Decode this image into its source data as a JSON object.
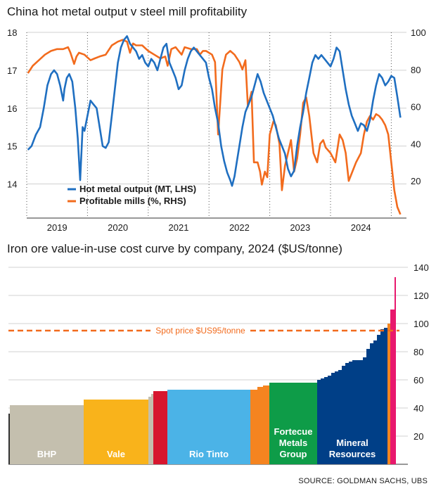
{
  "colors": {
    "hot_metal": "#1f6fc1",
    "profitable": "#f26b1d",
    "spot_line": "#f26b1d",
    "grid": "#d0d0d0",
    "axis": "#333333"
  },
  "chart_data": [
    {
      "type": "line",
      "title": "China hot metal output v steel mill profitability",
      "x_ticks": [
        "2019",
        "2020",
        "2021",
        "2022",
        "2023",
        "2024"
      ],
      "x_range": [
        2018.5,
        2024.75
      ],
      "y_left": {
        "range": [
          13.1,
          18
        ],
        "ticks": [
          14,
          15,
          16,
          17,
          18
        ],
        "label": ""
      },
      "y_right": {
        "range": [
          0,
          100
        ],
        "ticks": [
          20,
          40,
          60,
          80,
          100
        ],
        "label": ""
      },
      "legend_position": "bottom-left",
      "series": [
        {
          "name": "Hot metal output (MT, LHS)",
          "axis": "left",
          "color": "#1f6fc1",
          "points": [
            [
              2018.52,
              14.9
            ],
            [
              2018.58,
              15.0
            ],
            [
              2018.65,
              15.3
            ],
            [
              2018.72,
              15.5
            ],
            [
              2018.78,
              16.0
            ],
            [
              2018.84,
              16.6
            ],
            [
              2018.9,
              16.9
            ],
            [
              2018.95,
              17.0
            ],
            [
              2019.0,
              16.9
            ],
            [
              2019.05,
              16.6
            ],
            [
              2019.1,
              16.2
            ],
            [
              2019.12,
              16.5
            ],
            [
              2019.16,
              16.8
            ],
            [
              2019.2,
              16.9
            ],
            [
              2019.25,
              16.7
            ],
            [
              2019.3,
              16.0
            ],
            [
              2019.34,
              15.2
            ],
            [
              2019.38,
              14.1
            ],
            [
              2019.42,
              15.5
            ],
            [
              2019.45,
              15.4
            ],
            [
              2019.5,
              15.8
            ],
            [
              2019.55,
              16.2
            ],
            [
              2019.6,
              16.1
            ],
            [
              2019.65,
              16.0
            ],
            [
              2019.7,
              15.5
            ],
            [
              2019.75,
              15.0
            ],
            [
              2019.8,
              14.95
            ],
            [
              2019.85,
              15.1
            ],
            [
              2019.9,
              15.8
            ],
            [
              2019.95,
              16.5
            ],
            [
              2020.0,
              17.2
            ],
            [
              2020.05,
              17.6
            ],
            [
              2020.1,
              17.8
            ],
            [
              2020.15,
              17.9
            ],
            [
              2020.2,
              17.7
            ],
            [
              2020.25,
              17.6
            ],
            [
              2020.3,
              17.5
            ],
            [
              2020.35,
              17.3
            ],
            [
              2020.4,
              17.4
            ],
            [
              2020.45,
              17.2
            ],
            [
              2020.5,
              17.1
            ],
            [
              2020.55,
              17.3
            ],
            [
              2020.6,
              17.2
            ],
            [
              2020.65,
              17.0
            ],
            [
              2020.7,
              17.3
            ],
            [
              2020.75,
              17.6
            ],
            [
              2020.8,
              17.7
            ],
            [
              2020.85,
              17.2
            ],
            [
              2020.9,
              17.0
            ],
            [
              2020.95,
              16.8
            ],
            [
              2021.0,
              16.5
            ],
            [
              2021.05,
              16.6
            ],
            [
              2021.1,
              17.0
            ],
            [
              2021.15,
              17.3
            ],
            [
              2021.2,
              17.5
            ],
            [
              2021.25,
              17.6
            ],
            [
              2021.3,
              17.5
            ],
            [
              2021.35,
              17.4
            ],
            [
              2021.4,
              17.3
            ],
            [
              2021.45,
              17.2
            ],
            [
              2021.5,
              16.8
            ],
            [
              2021.55,
              16.5
            ],
            [
              2021.6,
              16.0
            ],
            [
              2021.65,
              15.6
            ],
            [
              2021.7,
              15.0
            ],
            [
              2021.75,
              14.6
            ],
            [
              2021.8,
              14.3
            ],
            [
              2021.85,
              14.1
            ],
            [
              2021.88,
              13.95
            ],
            [
              2021.92,
              14.2
            ],
            [
              2021.96,
              14.6
            ],
            [
              2022.0,
              15.0
            ],
            [
              2022.05,
              15.5
            ],
            [
              2022.1,
              15.9
            ],
            [
              2022.15,
              16.1
            ],
            [
              2022.2,
              16.3
            ],
            [
              2022.25,
              16.6
            ],
            [
              2022.3,
              16.9
            ],
            [
              2022.35,
              16.7
            ],
            [
              2022.4,
              16.4
            ],
            [
              2022.45,
              16.2
            ],
            [
              2022.5,
              16.0
            ],
            [
              2022.55,
              15.8
            ],
            [
              2022.6,
              15.5
            ],
            [
              2022.65,
              15.2
            ],
            [
              2022.7,
              15.0
            ],
            [
              2022.75,
              14.8
            ],
            [
              2022.8,
              14.4
            ],
            [
              2022.85,
              14.2
            ],
            [
              2022.9,
              14.35
            ],
            [
              2022.95,
              15.0
            ],
            [
              2023.0,
              15.5
            ],
            [
              2023.05,
              15.9
            ],
            [
              2023.1,
              16.4
            ],
            [
              2023.15,
              16.8
            ],
            [
              2023.2,
              17.2
            ],
            [
              2023.25,
              17.4
            ],
            [
              2023.3,
              17.3
            ],
            [
              2023.35,
              17.4
            ],
            [
              2023.4,
              17.3
            ],
            [
              2023.45,
              17.2
            ],
            [
              2023.5,
              17.1
            ],
            [
              2023.55,
              17.3
            ],
            [
              2023.6,
              17.6
            ],
            [
              2023.65,
              17.5
            ],
            [
              2023.7,
              17.0
            ],
            [
              2023.75,
              16.5
            ],
            [
              2023.8,
              16.1
            ],
            [
              2023.85,
              15.8
            ],
            [
              2023.9,
              15.6
            ],
            [
              2023.95,
              15.4
            ],
            [
              2024.0,
              15.6
            ],
            [
              2024.05,
              15.55
            ],
            [
              2024.1,
              15.4
            ],
            [
              2024.15,
              15.7
            ],
            [
              2024.2,
              16.2
            ],
            [
              2024.25,
              16.6
            ],
            [
              2024.3,
              16.9
            ],
            [
              2024.35,
              16.8
            ],
            [
              2024.4,
              16.6
            ],
            [
              2024.45,
              16.7
            ],
            [
              2024.5,
              16.85
            ],
            [
              2024.55,
              16.8
            ],
            [
              2024.6,
              16.3
            ],
            [
              2024.65,
              15.75
            ]
          ]
        },
        {
          "name": "Profitable mills (%, RHS)",
          "axis": "right",
          "color": "#f26b1d",
          "points": [
            [
              2018.52,
              78
            ],
            [
              2018.6,
              82
            ],
            [
              2018.7,
              85
            ],
            [
              2018.8,
              88
            ],
            [
              2018.9,
              90
            ],
            [
              2019.0,
              91
            ],
            [
              2019.1,
              91
            ],
            [
              2019.18,
              92
            ],
            [
              2019.22,
              89
            ],
            [
              2019.28,
              83
            ],
            [
              2019.32,
              87
            ],
            [
              2019.36,
              89
            ],
            [
              2019.45,
              88
            ],
            [
              2019.55,
              85
            ],
            [
              2019.62,
              86
            ],
            [
              2019.7,
              87
            ],
            [
              2019.8,
              88
            ],
            [
              2019.9,
              93
            ],
            [
              2020.0,
              95
            ],
            [
              2020.08,
              96
            ],
            [
              2020.15,
              95
            ],
            [
              2020.2,
              89
            ],
            [
              2020.25,
              94
            ],
            [
              2020.3,
              93
            ],
            [
              2020.4,
              93
            ],
            [
              2020.5,
              90
            ],
            [
              2020.6,
              88
            ],
            [
              2020.7,
              86
            ],
            [
              2020.78,
              87
            ],
            [
              2020.82,
              82
            ],
            [
              2020.88,
              91
            ],
            [
              2020.95,
              92
            ],
            [
              2021.0,
              90
            ],
            [
              2021.05,
              88
            ],
            [
              2021.1,
              92
            ],
            [
              2021.2,
              91
            ],
            [
              2021.3,
              91
            ],
            [
              2021.35,
              88
            ],
            [
              2021.4,
              90
            ],
            [
              2021.45,
              90
            ],
            [
              2021.55,
              88
            ],
            [
              2021.6,
              84
            ],
            [
              2021.65,
              45
            ],
            [
              2021.68,
              60
            ],
            [
              2021.72,
              80
            ],
            [
              2021.78,
              88
            ],
            [
              2021.85,
              90
            ],
            [
              2021.92,
              88
            ],
            [
              2022.0,
              84
            ],
            [
              2022.05,
              80
            ],
            [
              2022.1,
              85
            ],
            [
              2022.14,
              60
            ],
            [
              2022.2,
              68
            ],
            [
              2022.24,
              30
            ],
            [
              2022.3,
              30
            ],
            [
              2022.34,
              25
            ],
            [
              2022.37,
              18
            ],
            [
              2022.42,
              25
            ],
            [
              2022.46,
              22
            ],
            [
              2022.5,
              45
            ],
            [
              2022.56,
              52
            ],
            [
              2022.6,
              50
            ],
            [
              2022.66,
              40
            ],
            [
              2022.7,
              15
            ],
            [
              2022.75,
              28
            ],
            [
              2022.8,
              35
            ],
            [
              2022.85,
              42
            ],
            [
              2022.9,
              25
            ],
            [
              2022.95,
              32
            ],
            [
              2023.0,
              45
            ],
            [
              2023.05,
              62
            ],
            [
              2023.1,
              65
            ],
            [
              2023.15,
              55
            ],
            [
              2023.22,
              35
            ],
            [
              2023.28,
              30
            ],
            [
              2023.33,
              40
            ],
            [
              2023.38,
              42
            ],
            [
              2023.42,
              38
            ],
            [
              2023.5,
              35
            ],
            [
              2023.58,
              30
            ],
            [
              2023.65,
              45
            ],
            [
              2023.7,
              42
            ],
            [
              2023.75,
              35
            ],
            [
              2023.8,
              20
            ],
            [
              2023.86,
              25
            ],
            [
              2023.92,
              30
            ],
            [
              2024.0,
              35
            ],
            [
              2024.05,
              45
            ],
            [
              2024.1,
              52
            ],
            [
              2024.15,
              55
            ],
            [
              2024.2,
              53
            ],
            [
              2024.25,
              56
            ],
            [
              2024.3,
              55
            ],
            [
              2024.35,
              53
            ],
            [
              2024.4,
              50
            ],
            [
              2024.45,
              45
            ],
            [
              2024.5,
              30
            ],
            [
              2024.55,
              15
            ],
            [
              2024.6,
              6
            ],
            [
              2024.65,
              2
            ]
          ]
        }
      ]
    },
    {
      "type": "bar",
      "title": "Iron ore value-in-use cost curve by company, 2024 ($US/tonne)",
      "y_range": [
        0,
        140
      ],
      "y_ticks": [
        20,
        40,
        60,
        80,
        100,
        120,
        140
      ],
      "reference_line": {
        "value": 95,
        "label": "Spot price $US95/tonne"
      },
      "segments": [
        {
          "label": "BHP",
          "color": "#c4bfae",
          "value": 42,
          "width": 105
        },
        {
          "label": "Vale",
          "color": "#f9b31b",
          "value": 46,
          "width": 92
        },
        {
          "label": "",
          "color": "#c4bfae",
          "value": 48,
          "width": 4
        },
        {
          "label": "",
          "color": "#c4bfae",
          "value": 50,
          "width": 3
        },
        {
          "label": "",
          "color": "#d7162e",
          "value": 52,
          "width": 20
        },
        {
          "label": "Rio Tinto",
          "color": "#4bb3e7",
          "value": 53,
          "width": 118
        },
        {
          "label": "",
          "color": "#f58420",
          "value": 53,
          "width": 10
        },
        {
          "label": "",
          "color": "#f58420",
          "value": 55,
          "width": 8
        },
        {
          "label": "",
          "color": "#f58420",
          "value": 56,
          "width": 9
        },
        {
          "label": "Fortecue Metals Group",
          "color": "#0e9c48",
          "value": 58,
          "width": 68
        },
        {
          "label": "Mineral Resources",
          "color": "#003f87",
          "value": 68,
          "width": 100,
          "steps": [
            60,
            61,
            62,
            63,
            65,
            66,
            67,
            70,
            72,
            73,
            74,
            74,
            74,
            76,
            82,
            86,
            88,
            92,
            96,
            97
          ]
        },
        {
          "label": "",
          "color": "#f58420",
          "value": 100,
          "width": 4
        },
        {
          "label": "",
          "color": "#e8186d",
          "value": 110,
          "width": 6
        },
        {
          "label": "",
          "color": "#e8186d",
          "value": 133,
          "width": 2
        }
      ]
    }
  ],
  "source": "SOURCE: GOLDMAN SACHS, UBS"
}
